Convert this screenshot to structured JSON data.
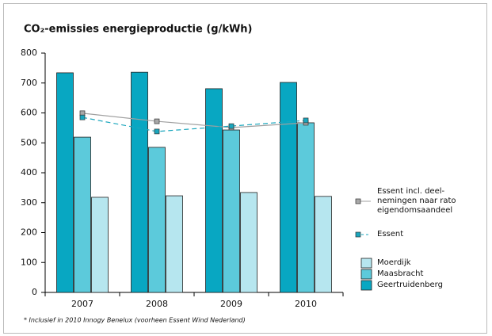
{
  "chart_data": {
    "type": "bar",
    "title": "CO₂-emissies energieproductie (g/kWh)",
    "footnote": "* Inclusief in 2010 Innogy Benelux (voorheen Essent Wind Nederland)",
    "categories": [
      "2007",
      "2008",
      "2009",
      "2010"
    ],
    "series": [
      {
        "name": "Moerdijk",
        "color": "#b6e6ef",
        "values": [
          318,
          323,
          334,
          321
        ]
      },
      {
        "name": "Maasbracht",
        "color": "#5ccadb",
        "values": [
          519,
          485,
          543,
          567
        ]
      },
      {
        "name": "Geertruidenberg",
        "color": "#08a7c2",
        "values": [
          734,
          736,
          681,
          702
        ]
      }
    ],
    "lines": [
      {
        "name": "Essent incl. deel-\nnemingen naar rato\neigendomsaandeel",
        "color": "#a0a0a0",
        "marker_color": "#a8a8a8",
        "dashed": false,
        "values": [
          599,
          572,
          551,
          567
        ]
      },
      {
        "name": "Essent",
        "color": "#1aa6bd",
        "marker_color": "#1aa6bd",
        "dashed": true,
        "values": [
          585,
          538,
          556,
          575
        ]
      }
    ],
    "ylim": [
      0,
      800
    ],
    "yticks": [
      0,
      100,
      200,
      300,
      400,
      500,
      600,
      700,
      800
    ]
  }
}
